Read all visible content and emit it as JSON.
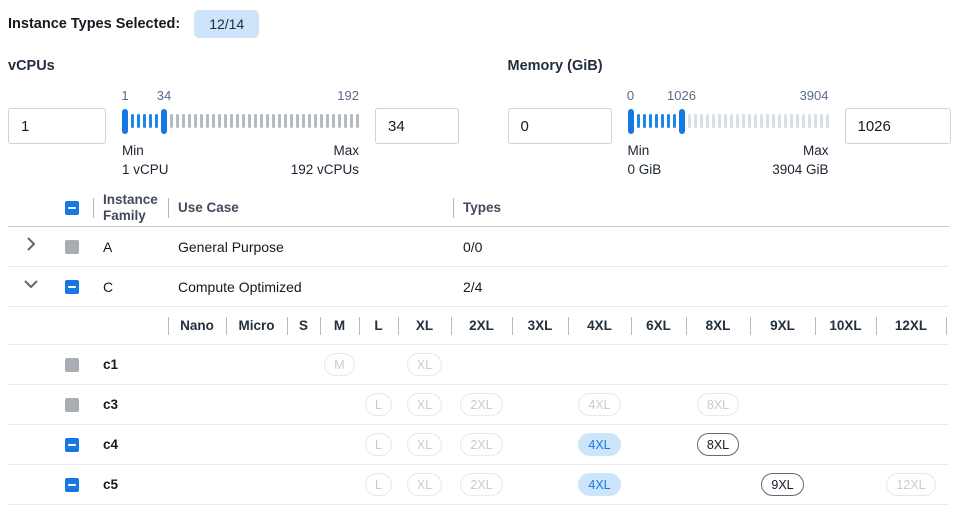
{
  "selected_bar": {
    "label": "Instance Types Selected:",
    "badge": "12/14"
  },
  "filters": {
    "vcpus": {
      "title": "vCPUs",
      "from_value": "1",
      "to_value": "34",
      "slider": {
        "low_label": "1",
        "high_label": "34",
        "max_label": "192",
        "active_ticks": 5,
        "inactive_ticks": 32
      },
      "min_caption": "Min",
      "min_detail": "1 vCPU",
      "max_caption": "Max",
      "max_detail": "192 vCPUs"
    },
    "memory": {
      "title": "Memory (GiB)",
      "from_value": "0",
      "to_value": "1026",
      "slider": {
        "low_label": "0",
        "high_label": "1026",
        "max_label": "3904",
        "active_ticks": 7,
        "inactive_ticks": 24
      },
      "min_caption": "Min",
      "min_detail": "0 GiB",
      "max_caption": "Max",
      "max_detail": "3904 GiB"
    }
  },
  "table": {
    "headers": {
      "family": "Instance Family",
      "use_case": "Use Case",
      "types": "Types"
    },
    "header_checkbox": "indeterminate",
    "size_columns": [
      "Nano",
      "Micro",
      "S",
      "M",
      "L",
      "XL",
      "2XL",
      "3XL",
      "4XL",
      "6XL",
      "8XL",
      "9XL",
      "10XL",
      "12XL"
    ],
    "family_rows": [
      {
        "family": "A",
        "use_case": "General Purpose",
        "types": "0/0",
        "expanded": false,
        "checkbox": "disabled"
      },
      {
        "family": "C",
        "use_case": "Compute Optimized",
        "types": "2/4",
        "expanded": true,
        "checkbox": "indeterminate"
      }
    ],
    "instance_rows": [
      {
        "name": "c1",
        "checkbox": "disabled",
        "pills": [
          {
            "size": "M",
            "state": "disabled"
          },
          {
            "size": "XL",
            "state": "disabled"
          }
        ]
      },
      {
        "name": "c3",
        "checkbox": "disabled",
        "pills": [
          {
            "size": "L",
            "state": "disabled"
          },
          {
            "size": "XL",
            "state": "disabled"
          },
          {
            "size": "2XL",
            "state": "disabled"
          },
          {
            "size": "4XL",
            "state": "disabled"
          },
          {
            "size": "8XL",
            "state": "disabled"
          }
        ]
      },
      {
        "name": "c4",
        "checkbox": "indeterminate",
        "pills": [
          {
            "size": "L",
            "state": "disabled"
          },
          {
            "size": "XL",
            "state": "disabled"
          },
          {
            "size": "2XL",
            "state": "disabled"
          },
          {
            "size": "4XL",
            "state": "selected"
          },
          {
            "size": "8XL",
            "state": "enabled"
          }
        ]
      },
      {
        "name": "c5",
        "checkbox": "indeterminate",
        "pills": [
          {
            "size": "L",
            "state": "disabled"
          },
          {
            "size": "XL",
            "state": "disabled"
          },
          {
            "size": "2XL",
            "state": "disabled"
          },
          {
            "size": "4XL",
            "state": "selected"
          },
          {
            "size": "9XL",
            "state": "enabled"
          },
          {
            "size": "12XL",
            "state": "disabled"
          }
        ]
      }
    ]
  },
  "colors": {
    "accent_blue": "#1778e3",
    "selected_pill_bg": "#cde5fb",
    "badge_bg": "#cde5fb",
    "disabled_gray": "#a9adb4"
  }
}
